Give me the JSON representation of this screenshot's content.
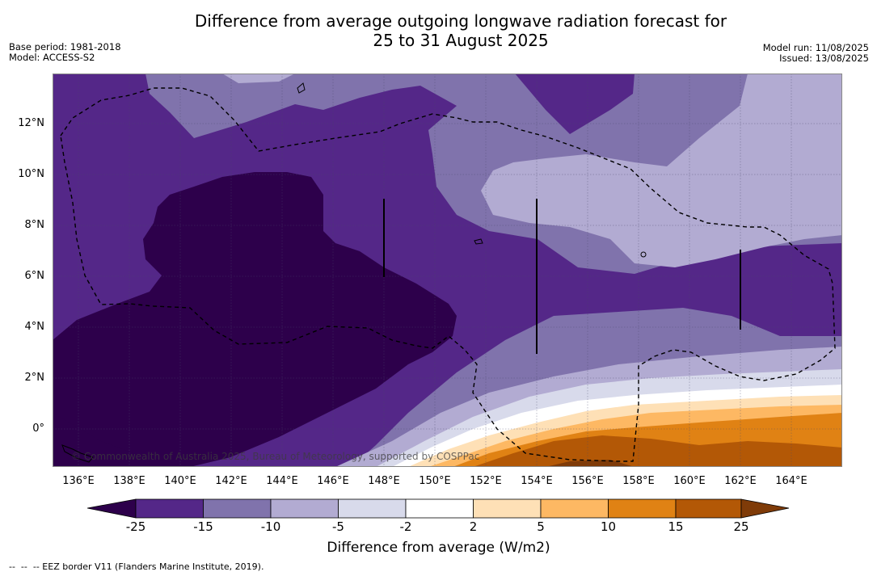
{
  "title": {
    "line1": "Difference from average outgoing longwave radiation forecast for",
    "line2": "25 to 31 August 2025"
  },
  "meta": {
    "base_period": "Base period: 1981-2018",
    "model": "Model: ACCESS-S2",
    "model_run": "Model run: 11/08/2025",
    "issued": "Issued: 13/08/2025"
  },
  "map": {
    "y_ticks": [
      "12°N",
      "10°N",
      "8°N",
      "6°N",
      "4°N",
      "2°N",
      "0°"
    ],
    "x_ticks": [
      "136°E",
      "138°E",
      "140°E",
      "142°E",
      "144°E",
      "146°E",
      "148°E",
      "150°E",
      "152°E",
      "154°E",
      "156°E",
      "158°E",
      "160°E",
      "162°E",
      "164°E"
    ],
    "copyright": "© Commonwealth of Australia 2025, Bureau of Meteorology, supported by COSPPac"
  },
  "colorbar": {
    "title": "Difference from average (W/m2)",
    "ticks": [
      "-25",
      "-15",
      "-10",
      "-5",
      "-2",
      "2",
      "5",
      "10",
      "15",
      "25"
    ],
    "colors": [
      "#2d004b",
      "#542788",
      "#8073ac",
      "#b2abd2",
      "#d8daeb",
      "#ffffff",
      "#fee0b6",
      "#fdb863",
      "#e08214",
      "#b35806",
      "#7f3b08"
    ]
  },
  "footnote": "--  --  -- EEZ border V11 (Flanders Marine Institute, 2019)."
}
